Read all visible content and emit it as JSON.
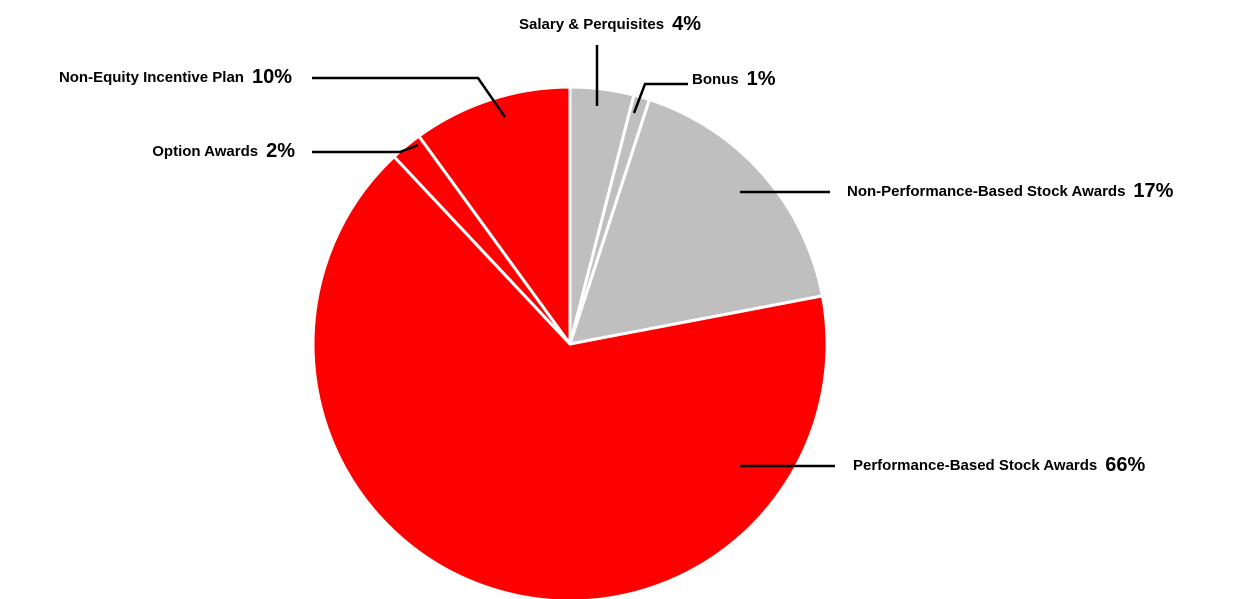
{
  "chart_data": {
    "type": "pie",
    "categories": [
      "Salary & Perquisites",
      "Bonus",
      "Non-Performance-Based Stock Awards",
      "Performance-Based Stock Awards",
      "Option Awards",
      "Non-Equity Incentive Plan"
    ],
    "values": [
      4,
      1,
      17,
      66,
      2,
      10
    ],
    "value_labels": [
      "4%",
      "1%",
      "17%",
      "66%",
      "2%",
      "10%"
    ],
    "colors": [
      "#bfbfbf",
      "#bfbfbf",
      "#bfbfbf",
      "#ff0000",
      "#ff0000",
      "#ff0000"
    ]
  }
}
